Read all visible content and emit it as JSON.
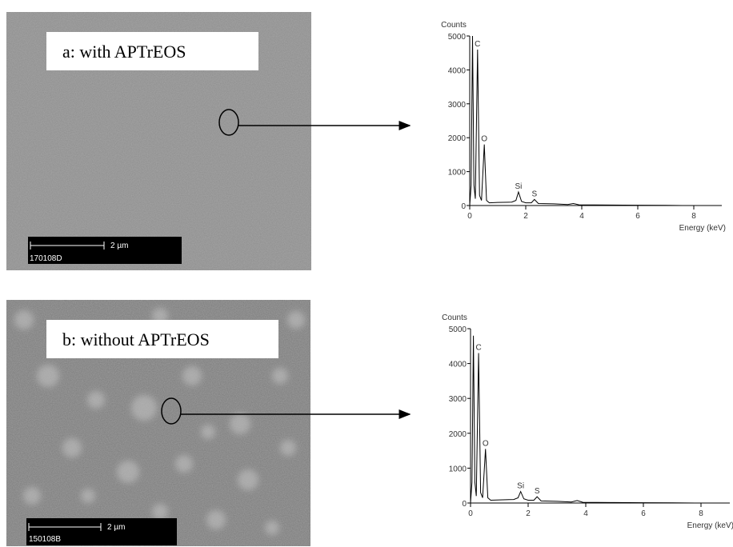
{
  "panels": [
    {
      "label": "a: with APTrEOS",
      "scale": "2 µm",
      "sample": "170108D"
    },
    {
      "label": "b: without APTrEOS",
      "scale": "2 µm",
      "sample": "150108B"
    }
  ],
  "chart_data": [
    {
      "type": "line",
      "ylabel": "Counts",
      "xlabel": "Energy (keV)",
      "color": "#000000",
      "xlim": [
        0,
        9
      ],
      "ylim": [
        0,
        5000
      ],
      "xticks": [
        0,
        2,
        4,
        6,
        8
      ],
      "yticks": [
        0,
        1000,
        2000,
        3000,
        4000,
        5000
      ],
      "x": [
        0,
        0.05,
        0.1,
        0.15,
        0.2,
        0.28,
        0.35,
        0.42,
        0.52,
        0.6,
        0.7,
        1.0,
        1.5,
        1.65,
        1.74,
        1.85,
        2.0,
        2.2,
        2.31,
        2.45,
        3.0,
        3.5,
        3.7,
        3.9,
        5.0,
        6.0,
        7.0,
        7.6
      ],
      "values": [
        0,
        600,
        5000,
        600,
        200,
        4600,
        300,
        150,
        1800,
        150,
        80,
        90,
        100,
        150,
        400,
        120,
        80,
        80,
        180,
        60,
        50,
        30,
        60,
        20,
        15,
        10,
        5,
        0
      ],
      "peak_labels": [
        {
          "text": "C",
          "x": 0.28,
          "y": 4600
        },
        {
          "text": "O",
          "x": 0.52,
          "y": 1800
        },
        {
          "text": "Si",
          "x": 1.74,
          "y": 400
        },
        {
          "text": "S",
          "x": 2.31,
          "y": 180
        }
      ]
    },
    {
      "type": "line",
      "ylabel": "Counts",
      "xlabel": "Energy (keV)",
      "color": "#000000",
      "xlim": [
        0,
        9
      ],
      "ylim": [
        0,
        5000
      ],
      "xticks": [
        0,
        2,
        4,
        6,
        8
      ],
      "yticks": [
        0,
        1000,
        2000,
        3000,
        4000,
        5000
      ],
      "x": [
        0,
        0.05,
        0.1,
        0.15,
        0.2,
        0.28,
        0.35,
        0.42,
        0.52,
        0.6,
        0.7,
        1.0,
        1.5,
        1.65,
        1.74,
        1.85,
        2.0,
        2.2,
        2.31,
        2.45,
        3.0,
        3.5,
        3.7,
        3.9,
        5.0,
        6.0,
        7.0,
        7.8
      ],
      "values": [
        0,
        600,
        4800,
        600,
        200,
        4300,
        300,
        150,
        1550,
        150,
        80,
        90,
        100,
        150,
        330,
        120,
        80,
        80,
        180,
        60,
        50,
        30,
        70,
        20,
        15,
        10,
        5,
        0
      ],
      "peak_labels": [
        {
          "text": "C",
          "x": 0.28,
          "y": 4300
        },
        {
          "text": "O",
          "x": 0.52,
          "y": 1550
        },
        {
          "text": "Si",
          "x": 1.74,
          "y": 330
        },
        {
          "text": "S",
          "x": 2.31,
          "y": 180
        }
      ]
    }
  ]
}
